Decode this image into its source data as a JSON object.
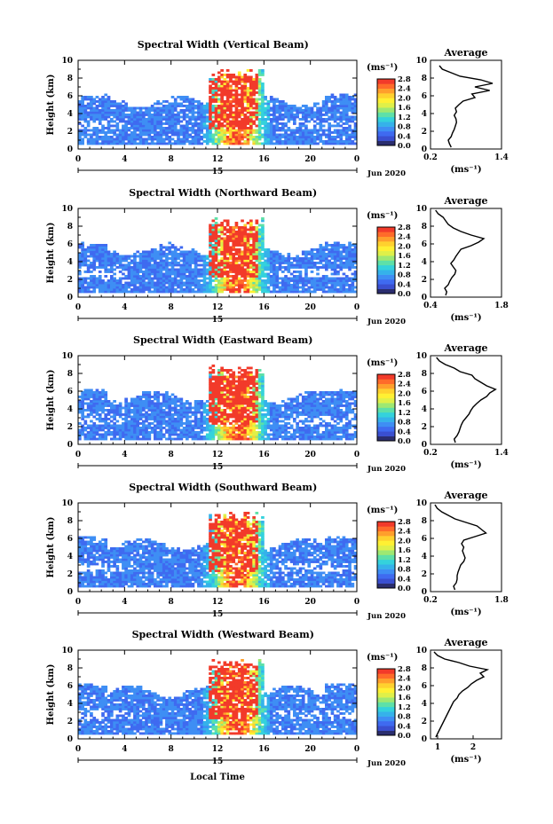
{
  "figure": {
    "xlabel": "Local Time",
    "month_label": "Jun 2020",
    "day_label": "15",
    "cbar_unit": "(ms⁻¹)",
    "cbar_ticks": [
      "0.0",
      "0.4",
      "0.8",
      "1.2",
      "1.6",
      "2.0",
      "2.4",
      "2.8"
    ],
    "colormap": [
      "#2a2d6e",
      "#3a4fd0",
      "#3f6af0",
      "#3e8ef4",
      "#35b2ea",
      "#34d2dc",
      "#5ee0a8",
      "#9ee872",
      "#dff049",
      "#fff033",
      "#ffd12e",
      "#ff9f2c",
      "#ff6b2a",
      "#f23a2a"
    ],
    "avg_title": "Average",
    "avg_unit": "(ms⁻¹)"
  },
  "chart_data": [
    {
      "type": "heatmap",
      "title": "Spectral Width (Vertical Beam)",
      "xlabel": "",
      "ylabel": "Height (km)",
      "xticks": [
        "0",
        "4",
        "8",
        "12",
        "16",
        "20",
        "0"
      ],
      "yticks": [
        "0",
        "2",
        "4",
        "6",
        "8",
        "10"
      ],
      "xlim": [
        0,
        24
      ],
      "ylim": [
        0,
        10
      ],
      "clim": [
        0,
        2.8
      ],
      "average": {
        "type": "line",
        "title": "Average",
        "xticks": [
          "0.2",
          "1.4"
        ],
        "xlim": [
          0.2,
          1.4
        ],
        "ylim": [
          0,
          10
        ],
        "heights": [
          0.2,
          0.6,
          1,
          1.4,
          1.8,
          2.2,
          2.6,
          3,
          3.4,
          3.8,
          4.2,
          4.6,
          5,
          5.4,
          5.8,
          6.2,
          6.6,
          7,
          7.4,
          7.8,
          8.2,
          8.6,
          9,
          9.4
        ],
        "values": [
          0.55,
          0.52,
          0.5,
          0.55,
          0.57,
          0.6,
          0.62,
          0.64,
          0.63,
          0.6,
          0.64,
          0.62,
          0.68,
          0.75,
          0.95,
          0.9,
          1.2,
          0.95,
          1.25,
          1.05,
          0.7,
          0.55,
          0.4,
          0.35
        ]
      }
    },
    {
      "type": "heatmap",
      "title": "Spectral Width (Northward Beam)",
      "xlabel": "",
      "ylabel": "Height (km)",
      "xticks": [
        "0",
        "4",
        "8",
        "12",
        "16",
        "20",
        "0"
      ],
      "yticks": [
        "0",
        "2",
        "4",
        "6",
        "8",
        "10"
      ],
      "xlim": [
        0,
        24
      ],
      "ylim": [
        0,
        10
      ],
      "clim": [
        0,
        2.8
      ],
      "average": {
        "type": "line",
        "title": "Average",
        "xticks": [
          "0.4",
          "1.8"
        ],
        "xlim": [
          0.4,
          1.8
        ],
        "ylim": [
          0,
          10
        ],
        "heights": [
          0.2,
          0.6,
          1,
          1.4,
          1.8,
          2.2,
          2.6,
          3,
          3.4,
          3.8,
          4.2,
          4.6,
          5,
          5.4,
          5.8,
          6.2,
          6.6,
          7,
          7.4,
          7.8,
          8.2,
          8.6,
          9,
          9.4,
          9.8
        ],
        "values": [
          0.7,
          0.72,
          0.68,
          0.75,
          0.78,
          0.82,
          0.88,
          0.9,
          0.85,
          0.8,
          0.86,
          0.9,
          0.95,
          1.0,
          1.2,
          1.35,
          1.45,
          1.2,
          1.0,
          0.85,
          0.75,
          0.7,
          0.65,
          0.55,
          0.5
        ]
      }
    },
    {
      "type": "heatmap",
      "title": "Spectral Width (Eastward Beam)",
      "xlabel": "",
      "ylabel": "Height (km)",
      "xticks": [
        "0",
        "4",
        "8",
        "12",
        "16",
        "20",
        "0"
      ],
      "yticks": [
        "0",
        "2",
        "4",
        "6",
        "8",
        "10"
      ],
      "xlim": [
        0,
        24
      ],
      "ylim": [
        0,
        10
      ],
      "clim": [
        0,
        2.8
      ],
      "average": {
        "type": "line",
        "title": "Average",
        "xticks": [
          "0.2",
          "1.4"
        ],
        "xlim": [
          0.2,
          1.4
        ],
        "ylim": [
          0,
          10
        ],
        "heights": [
          0.2,
          0.6,
          1,
          1.4,
          1.8,
          2.2,
          2.6,
          3,
          3.4,
          3.8,
          4.2,
          4.6,
          5,
          5.4,
          5.8,
          6.2,
          6.6,
          7,
          7.4,
          7.8,
          8.2,
          8.6,
          9,
          9.4,
          9.8
        ],
        "values": [
          0.62,
          0.6,
          0.65,
          0.68,
          0.7,
          0.72,
          0.75,
          0.8,
          0.85,
          0.88,
          0.92,
          0.98,
          1.05,
          1.15,
          1.2,
          1.3,
          1.15,
          1.05,
          0.95,
          0.9,
          0.7,
          0.6,
          0.45,
          0.35,
          0.3
        ]
      }
    },
    {
      "type": "heatmap",
      "title": "Spectral Width (Southward Beam)",
      "xlabel": "",
      "ylabel": "Height (km)",
      "xticks": [
        "0",
        "4",
        "8",
        "12",
        "16",
        "20",
        "0"
      ],
      "yticks": [
        "0",
        "2",
        "4",
        "6",
        "8",
        "10"
      ],
      "xlim": [
        0,
        24
      ],
      "ylim": [
        0,
        10
      ],
      "clim": [
        0,
        2.8
      ],
      "average": {
        "type": "line",
        "title": "Average",
        "xticks": [
          "0.2",
          "1.8"
        ],
        "xlim": [
          0.2,
          1.8
        ],
        "ylim": [
          0,
          10
        ],
        "heights": [
          0.2,
          0.6,
          1,
          1.4,
          1.8,
          2.2,
          2.6,
          3,
          3.4,
          3.8,
          4.2,
          4.6,
          5,
          5.4,
          5.8,
          6.2,
          6.6,
          7,
          7.4,
          7.8,
          8.2,
          8.6,
          9,
          9.4,
          9.8
        ],
        "values": [
          0.75,
          0.72,
          0.78,
          0.8,
          0.8,
          0.82,
          0.85,
          0.88,
          0.95,
          0.98,
          0.95,
          0.92,
          0.95,
          0.9,
          0.95,
          1.2,
          1.45,
          1.35,
          1.25,
          1.0,
          0.75,
          0.6,
          0.45,
          0.35,
          0.3
        ]
      }
    },
    {
      "type": "heatmap",
      "title": "Spectral Width (Westward Beam)",
      "xlabel": "Local Time",
      "ylabel": "Height (km)",
      "xticks": [
        "0",
        "4",
        "8",
        "12",
        "16",
        "20",
        "0"
      ],
      "yticks": [
        "0",
        "2",
        "4",
        "6",
        "8",
        "10"
      ],
      "xlim": [
        0,
        24
      ],
      "ylim": [
        0,
        10
      ],
      "clim": [
        0,
        2.8
      ],
      "average": {
        "type": "line",
        "title": "Average",
        "xticks": [
          "1",
          "2"
        ],
        "xlim": [
          0.8,
          2.8
        ],
        "ylim": [
          0,
          10
        ],
        "heights": [
          0.2,
          0.6,
          1,
          1.4,
          1.8,
          2.2,
          2.6,
          3,
          3.4,
          3.8,
          4.2,
          4.6,
          5,
          5.4,
          5.8,
          6.2,
          6.6,
          7,
          7.4,
          7.8,
          8.2,
          8.6,
          9,
          9.4,
          9.8
        ],
        "values": [
          0.95,
          1.0,
          1.05,
          1.1,
          1.15,
          1.2,
          1.25,
          1.3,
          1.35,
          1.4,
          1.45,
          1.55,
          1.6,
          1.7,
          1.85,
          1.95,
          2.1,
          2.3,
          2.2,
          2.4,
          1.9,
          1.6,
          1.2,
          1.0,
          0.9
        ]
      }
    }
  ]
}
